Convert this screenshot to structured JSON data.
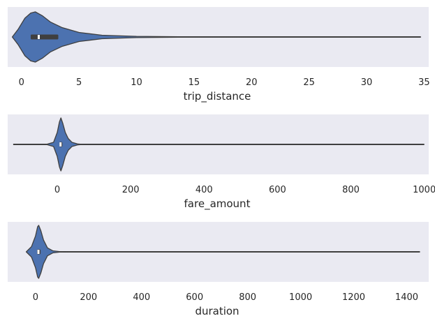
{
  "chart_data": [
    {
      "type": "violin",
      "xlabel": "trip_distance",
      "ylabel": "",
      "xlim": [
        -1.2,
        35.4
      ],
      "xticks": [
        0,
        5,
        10,
        15,
        20,
        25,
        30,
        35
      ],
      "grid": false,
      "data": {
        "min": -0.8,
        "q1": 0.8,
        "median": 1.5,
        "q3": 3.2,
        "max": 34.7
      },
      "density": [
        [
          -0.8,
          0.0
        ],
        [
          -0.3,
          0.3
        ],
        [
          0.3,
          0.75
        ],
        [
          0.8,
          0.95
        ],
        [
          1.2,
          1.0
        ],
        [
          1.8,
          0.85
        ],
        [
          2.5,
          0.6
        ],
        [
          3.5,
          0.38
        ],
        [
          5.0,
          0.18
        ],
        [
          7.0,
          0.07
        ],
        [
          10.0,
          0.025
        ],
        [
          14.0,
          0.008
        ],
        [
          20.0,
          0.003
        ],
        [
          28.0,
          0.001
        ],
        [
          34.7,
          0.0
        ]
      ]
    },
    {
      "type": "violin",
      "xlabel": "fare_amount",
      "ylabel": "",
      "xlim": [
        -135,
        1012
      ],
      "xticks": [
        0,
        200,
        400,
        600,
        800,
        1000
      ],
      "grid": false,
      "data": {
        "min": -120,
        "q1": 6,
        "median": 9,
        "q3": 14,
        "max": 1000
      },
      "density": [
        [
          -30,
          0.0
        ],
        [
          -10,
          0.08
        ],
        [
          0,
          0.45
        ],
        [
          6,
          0.85
        ],
        [
          10,
          1.0
        ],
        [
          15,
          0.8
        ],
        [
          22,
          0.45
        ],
        [
          30,
          0.22
        ],
        [
          40,
          0.08
        ],
        [
          55,
          0.02
        ],
        [
          70,
          0.0
        ]
      ]
    },
    {
      "type": "violin",
      "xlabel": "duration",
      "ylabel": "",
      "xlim": [
        -105,
        1483
      ],
      "xticks": [
        0,
        200,
        400,
        600,
        800,
        1000,
        1200,
        1400
      ],
      "grid": false,
      "data": {
        "min": -35,
        "q1": 6,
        "median": 11,
        "q3": 19,
        "max": 1450
      },
      "density": [
        [
          -35,
          0.0
        ],
        [
          -15,
          0.2
        ],
        [
          0,
          0.6
        ],
        [
          8,
          0.95
        ],
        [
          12,
          1.0
        ],
        [
          20,
          0.8
        ],
        [
          30,
          0.45
        ],
        [
          45,
          0.15
        ],
        [
          65,
          0.04
        ],
        [
          90,
          0.01
        ],
        [
          120,
          0.0
        ]
      ]
    }
  ],
  "colors": {
    "violin_fill": "#4c72b0",
    "line": "#3f3f3f",
    "axes_bg": "#eaeaf2",
    "text": "#262626",
    "median": "#ffffff"
  }
}
